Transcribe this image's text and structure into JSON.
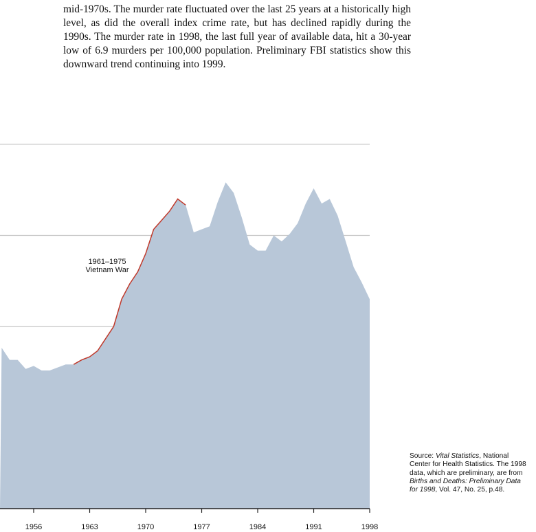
{
  "text": {
    "paragraph": "mid-1970s. The murder rate fluctuated over the last 25 years at a historically high level, as did the overall index crime rate, but has declined rapidly during the 1990s. The murder rate in 1998, the last full year of available data, hit a 30-year low of 6.9 murders per 100,000 population. Preliminary FBI statistics show this downward trend continuing into 1999."
  },
  "source": {
    "prefix": "Source: ",
    "title1": "Vital Statistics",
    "mid1": ", National Center for Health Statistics. The 1998 data, which are preliminary, are from ",
    "title2": "Births and Deaths: Preliminary Data for 1998",
    "suffix": ", Vol. 47, No. 25, p.48."
  },
  "chart_data": {
    "type": "area",
    "title": "",
    "xlabel": "",
    "ylabel": "",
    "xlim": [
      1952,
      1998
    ],
    "ylim": [
      0,
      12
    ],
    "gridlines": [
      6,
      9,
      12
    ],
    "x_ticks": [
      "1956",
      "1963",
      "1970",
      "1977",
      "1984",
      "1991",
      "1998"
    ],
    "colors": {
      "area": "#b8c7d8",
      "highlight": "#c0392b",
      "grid": "#c4c4c4",
      "axis": "#222222"
    },
    "annotation": {
      "line1": "1961–1975",
      "line2": "Vietnam War",
      "highlight_range": [
        1961,
        1975
      ]
    },
    "x": [
      1952,
      1953,
      1954,
      1955,
      1956,
      1957,
      1958,
      1959,
      1960,
      1961,
      1962,
      1963,
      1964,
      1965,
      1966,
      1967,
      1968,
      1969,
      1970,
      1971,
      1972,
      1973,
      1974,
      1975,
      1976,
      1977,
      1978,
      1979,
      1980,
      1981,
      1982,
      1983,
      1984,
      1985,
      1986,
      1987,
      1988,
      1989,
      1990,
      1991,
      1992,
      1993,
      1994,
      1995,
      1996,
      1997,
      1998
    ],
    "values": [
      5.3,
      4.9,
      4.9,
      4.6,
      4.7,
      4.55,
      4.55,
      4.65,
      4.75,
      4.75,
      4.9,
      5.0,
      5.2,
      5.6,
      6.0,
      6.9,
      7.4,
      7.8,
      8.4,
      9.2,
      9.5,
      9.8,
      10.2,
      10.0,
      9.1,
      9.2,
      9.3,
      10.1,
      10.75,
      10.4,
      9.6,
      8.7,
      8.5,
      8.5,
      9.0,
      8.8,
      9.05,
      9.4,
      10.05,
      10.55,
      10.05,
      10.2,
      9.65,
      8.8,
      7.95,
      7.45,
      6.9
    ]
  }
}
